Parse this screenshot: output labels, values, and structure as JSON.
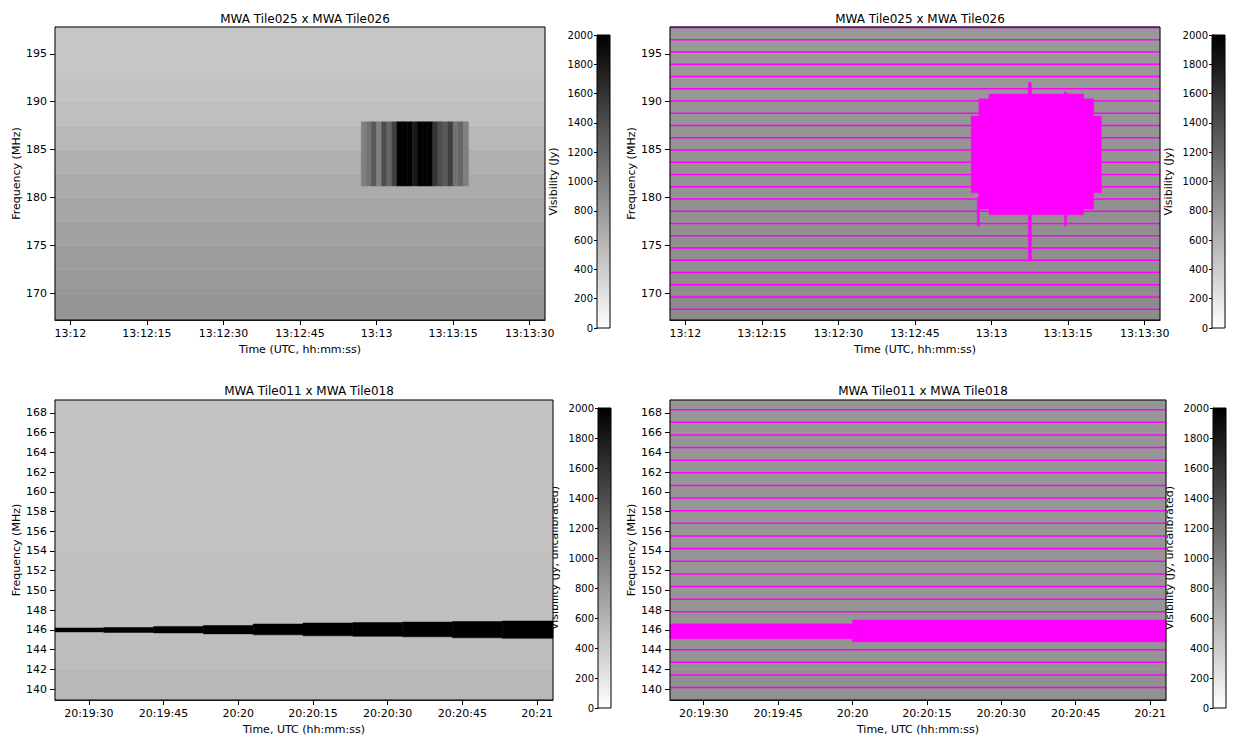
{
  "chart_data": [
    {
      "type": "dynamic_spectrum",
      "title": "MWA Tile025 x MWA Tile026",
      "x_label": "Time (UTC, hh:mm:ss)",
      "y_label": "Frequency (MHz)",
      "xlim": [
        47517,
        47613
      ],
      "xticks": [
        {
          "value": 47520,
          "label": "13:12"
        },
        {
          "value": 47535,
          "label": "13:12:15"
        },
        {
          "value": 47550,
          "label": "13:12:30"
        },
        {
          "value": 47565,
          "label": "13:12:45"
        },
        {
          "value": 47580,
          "label": "13:13"
        },
        {
          "value": 47595,
          "label": "13:13:15"
        },
        {
          "value": 47610,
          "label": "13:13:30"
        }
      ],
      "ylim": [
        167.2,
        197.8
      ],
      "yticks": [
        170,
        175,
        180,
        185,
        190,
        195
      ],
      "grid": false,
      "background": {
        "freq_edges": [
          167.2,
          170,
          172.5,
          175,
          177.5,
          180,
          182.5,
          185,
          187.5,
          190,
          192.5,
          195,
          197.8
        ],
        "values": [
          820,
          800,
          780,
          740,
          700,
          660,
          620,
          560,
          500,
          470,
          450,
          440
        ]
      },
      "rfi": {
        "time_edges": [
          47577,
          47578,
          47579,
          47580,
          47581,
          47582,
          47583,
          47584,
          47585,
          47586,
          47587,
          47588,
          47589,
          47590,
          47591,
          47592,
          47593,
          47594,
          47595,
          47596,
          47597,
          47598
        ],
        "freq_low": [
          181.2,
          181.2,
          181.2,
          181.2,
          181.2,
          181.2,
          181.2,
          181.2,
          181.2,
          181.2,
          181.2,
          181.2,
          181.2,
          181.2,
          181.2,
          181.2,
          181.2,
          181.2,
          181.2,
          181.2,
          181.2
        ],
        "freq_high": [
          187.9,
          187.9,
          187.9,
          187.9,
          187.9,
          187.9,
          187.9,
          187.9,
          187.9,
          187.9,
          187.9,
          187.9,
          187.9,
          187.9,
          187.9,
          187.9,
          187.9,
          187.9,
          187.9,
          187.9,
          187.9
        ],
        "values": [
          1000,
          1100,
          1300,
          1000,
          1400,
          1200,
          1500,
          2000,
          2000,
          2000,
          1800,
          2000,
          2000,
          2000,
          1600,
          1400,
          1300,
          1500,
          1100,
          1200,
          1000
        ]
      },
      "colorbar": {
        "label": "Visibility (Jy)",
        "lim": [
          0,
          2000
        ],
        "ticks": [
          0,
          200,
          400,
          600,
          800,
          1000,
          1200,
          1400,
          1600,
          1800,
          2000
        ]
      }
    },
    {
      "type": "dynamic_spectrum",
      "title": "MWA Tile025 x MWA Tile026",
      "x_label": "Time (UTC, hh:mm:ss)",
      "y_label": "Frequency (MHz)",
      "xlim": [
        47517,
        47613
      ],
      "xticks": [
        {
          "value": 47520,
          "label": "13:12"
        },
        {
          "value": 47535,
          "label": "13:12:15"
        },
        {
          "value": 47550,
          "label": "13:12:30"
        },
        {
          "value": 47565,
          "label": "13:12:45"
        },
        {
          "value": 47580,
          "label": "13:13"
        },
        {
          "value": 47595,
          "label": "13:13:15"
        },
        {
          "value": 47610,
          "label": "13:13:30"
        }
      ],
      "ylim": [
        167.2,
        197.8
      ],
      "yticks": [
        170,
        175,
        180,
        185,
        190,
        195
      ],
      "grid": false,
      "background": {
        "freq_edges": [
          167.2,
          170,
          172.5,
          175,
          177.5,
          180,
          182.5,
          185,
          187.5,
          190,
          192.5,
          195,
          197.8
        ],
        "values": [
          900,
          890,
          880,
          870,
          860,
          850,
          840,
          830,
          820,
          810,
          800,
          800
        ]
      },
      "flags": {
        "color": "#ff00ff",
        "channel_lines": [
          168.32,
          169.6,
          170.88,
          172.16,
          173.44,
          174.72,
          176.0,
          177.28,
          178.56,
          179.84,
          181.12,
          182.4,
          183.68,
          184.96,
          186.24,
          187.52,
          188.8,
          190.08,
          191.36,
          192.64,
          193.92,
          195.2,
          196.48,
          197.76
        ],
        "regions": [
          {
            "time": [
              47577.5,
              47600
            ],
            "freq": [
              178.8,
              190.3
            ]
          },
          {
            "time": [
              47576,
              47601.5
            ],
            "freq": [
              180.5,
              188.5
            ]
          },
          {
            "time": [
              47579.5,
              47598
            ],
            "freq": [
              178.2,
              190.8
            ]
          },
          {
            "time": [
              47587.2,
              47587.8
            ],
            "freq": [
              173.5,
              192.0
            ]
          },
          {
            "time": [
              47594.3,
              47594.7
            ],
            "freq": [
              177.0,
              191.0
            ]
          },
          {
            "time": [
              47577.2,
              47577.6
            ],
            "freq": [
              177.0,
              180.0
            ]
          }
        ]
      },
      "colorbar": {
        "label": "Visibility (Jy)",
        "lim": [
          0,
          2000
        ],
        "ticks": [
          0,
          200,
          400,
          600,
          800,
          1000,
          1200,
          1400,
          1600,
          1800,
          2000
        ]
      }
    },
    {
      "type": "dynamic_spectrum",
      "title": "MWA Tile011 x MWA Tile018",
      "x_label": "Time, UTC (hh:mm:ss)",
      "y_label": "Frequency (MHz)",
      "xlim": [
        73163.2,
        73263.2
      ],
      "xticks": [
        {
          "value": 73170,
          "label": "20:19:30"
        },
        {
          "value": 73185,
          "label": "20:19:45"
        },
        {
          "value": 73200,
          "label": "20:20"
        },
        {
          "value": 73215,
          "label": "20:20:15"
        },
        {
          "value": 73230,
          "label": "20:20:30"
        },
        {
          "value": 73245,
          "label": "20:20:45"
        },
        {
          "value": 73260,
          "label": "20:21"
        }
      ],
      "ylim": [
        138.9,
        169.3
      ],
      "yticks": [
        140,
        142,
        144,
        146,
        148,
        150,
        152,
        154,
        156,
        158,
        160,
        162,
        164,
        166,
        168
      ],
      "grid": false,
      "background": {
        "freq_edges": [
          138.9,
          142,
          146,
          150,
          154,
          158,
          162,
          166,
          169.3
        ],
        "values": [
          560,
          520,
          500,
          490,
          480,
          470,
          470,
          470
        ]
      },
      "rfi": {
        "time_edges": [
          73163.2,
          73173,
          73183,
          73193,
          73203,
          73213,
          73223,
          73233,
          73243,
          73253,
          73263.2
        ],
        "freq_low": [
          145.8,
          145.75,
          145.7,
          145.6,
          145.5,
          145.4,
          145.35,
          145.3,
          145.2,
          145.15
        ],
        "freq_high": [
          146.2,
          146.25,
          146.35,
          146.45,
          146.6,
          146.7,
          146.75,
          146.8,
          146.85,
          146.9
        ],
        "values": [
          2000,
          2000,
          2000,
          2000,
          2000,
          2000,
          2000,
          2000,
          2000,
          2000
        ]
      },
      "colorbar": {
        "label": "Visibility (Jy, uncalibrated)",
        "lim": [
          0,
          2000
        ],
        "ticks": [
          0,
          200,
          400,
          600,
          800,
          1000,
          1200,
          1400,
          1600,
          1800,
          2000
        ]
      }
    },
    {
      "type": "dynamic_spectrum",
      "title": "MWA Tile011 x MWA Tile018",
      "x_label": "Time, UTC (hh:mm:ss)",
      "y_label": "Frequency (MHz)",
      "xlim": [
        73163.2,
        73263.2
      ],
      "xticks": [
        {
          "value": 73170,
          "label": "20:19:30"
        },
        {
          "value": 73185,
          "label": "20:19:45"
        },
        {
          "value": 73200,
          "label": "20:20"
        },
        {
          "value": 73215,
          "label": "20:20:15"
        },
        {
          "value": 73230,
          "label": "20:20:30"
        },
        {
          "value": 73245,
          "label": "20:20:45"
        },
        {
          "value": 73260,
          "label": "20:21"
        }
      ],
      "ylim": [
        138.9,
        169.3
      ],
      "yticks": [
        140,
        142,
        144,
        146,
        148,
        150,
        152,
        154,
        156,
        158,
        160,
        162,
        164,
        166,
        168
      ],
      "grid": false,
      "background": {
        "freq_edges": [
          138.9,
          142,
          146,
          150,
          154,
          158,
          162,
          166,
          169.3
        ],
        "values": [
          860,
          840,
          830,
          820,
          820,
          820,
          820,
          820
        ]
      },
      "flags": {
        "color": "#ff00ff",
        "channel_lines": [
          140.16,
          141.44,
          142.72,
          144.0,
          145.28,
          146.56,
          147.84,
          149.12,
          150.4,
          151.68,
          152.96,
          154.24,
          155.52,
          156.8,
          158.08,
          159.36,
          160.64,
          161.92,
          163.2,
          164.48,
          165.76,
          167.04,
          168.32
        ],
        "regions": [
          {
            "time": [
              73163.2,
              73200
            ],
            "freq": [
              145.1,
              146.6
            ]
          },
          {
            "time": [
              73200,
              73263.2
            ],
            "freq": [
              144.8,
              147.0
            ]
          }
        ]
      },
      "colorbar": {
        "label": "Visibility (Jy, uncalibrated)",
        "lim": [
          0,
          2000
        ],
        "ticks": [
          0,
          200,
          400,
          600,
          800,
          1000,
          1200,
          1400,
          1600,
          1800,
          2000
        ]
      }
    }
  ]
}
